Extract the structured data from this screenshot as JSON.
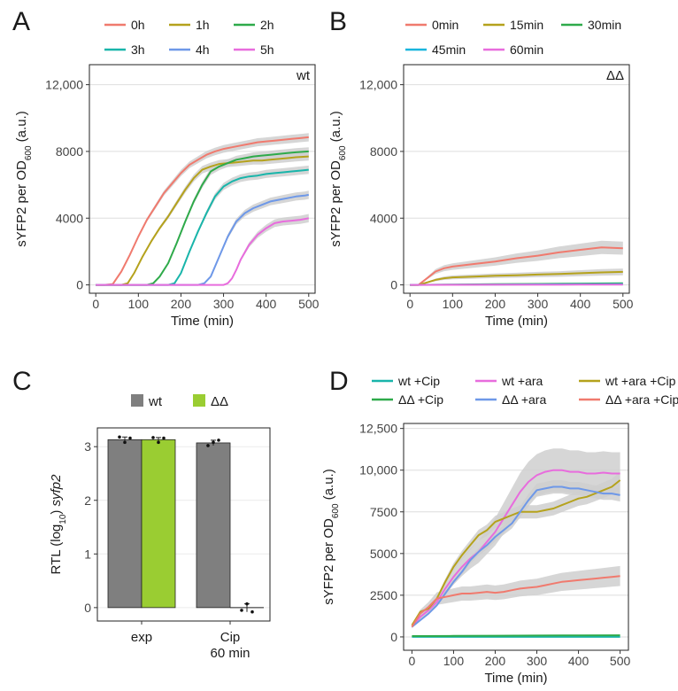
{
  "figure": {
    "panel_letters": [
      "A",
      "B",
      "C",
      "D"
    ]
  },
  "chart_data": [
    {
      "id": "A",
      "type": "line",
      "corner_label": "wt",
      "xlabel": "Time (min)",
      "ylabel_main": "sYFP2 per OD",
      "ylabel_sub": "600",
      "ylabel_suffix": " (a.u.)",
      "xlim": [
        -15,
        515
      ],
      "ylim": [
        -500,
        13200
      ],
      "xticks": [
        0,
        100,
        200,
        300,
        400,
        500
      ],
      "xtick_labels": [
        "0",
        "100",
        "200",
        "300",
        "400",
        "500"
      ],
      "yticks": [
        0,
        4000,
        8000,
        12000
      ],
      "ytick_labels": [
        "0",
        "4000",
        "8000",
        "12,000"
      ],
      "legend_cols": 3,
      "series": [
        {
          "name": "0h",
          "color": "#F07A6E",
          "x": [
            0,
            20,
            40,
            60,
            80,
            100,
            120,
            140,
            160,
            180,
            200,
            220,
            240,
            260,
            280,
            300,
            320,
            340,
            360,
            380,
            400,
            420,
            440,
            460,
            480,
            500
          ],
          "y": [
            0,
            0,
            50,
            800,
            1800,
            2900,
            3900,
            4700,
            5500,
            6100,
            6700,
            7200,
            7500,
            7800,
            8000,
            8150,
            8250,
            8350,
            8450,
            8550,
            8600,
            8650,
            8700,
            8750,
            8800,
            8850
          ]
        },
        {
          "name": "1h",
          "color": "#B5A21C",
          "x": [
            0,
            60,
            75,
            90,
            110,
            130,
            150,
            170,
            190,
            210,
            230,
            250,
            270,
            290,
            310,
            330,
            350,
            370,
            390,
            410,
            430,
            450,
            470,
            500
          ],
          "y": [
            0,
            0,
            100,
            700,
            1700,
            2600,
            3400,
            4100,
            4900,
            5700,
            6400,
            6900,
            7100,
            7250,
            7300,
            7350,
            7400,
            7450,
            7450,
            7500,
            7550,
            7600,
            7650,
            7700
          ]
        },
        {
          "name": "2h",
          "color": "#2EAA4A",
          "x": [
            0,
            120,
            135,
            150,
            170,
            190,
            210,
            230,
            250,
            270,
            290,
            310,
            330,
            350,
            370,
            390,
            410,
            430,
            450,
            470,
            500
          ],
          "y": [
            0,
            0,
            100,
            500,
            1300,
            2500,
            3800,
            5000,
            6000,
            6800,
            7100,
            7300,
            7500,
            7600,
            7700,
            7750,
            7800,
            7850,
            7900,
            7950,
            8000
          ]
        },
        {
          "name": "3h",
          "color": "#19B5AA",
          "x": [
            0,
            170,
            185,
            200,
            220,
            240,
            260,
            280,
            300,
            320,
            340,
            360,
            380,
            400,
            420,
            440,
            460,
            480,
            500
          ],
          "y": [
            0,
            0,
            100,
            700,
            2000,
            3200,
            4300,
            5300,
            5900,
            6200,
            6400,
            6500,
            6550,
            6650,
            6700,
            6750,
            6800,
            6850,
            6900
          ]
        },
        {
          "name": "4h",
          "color": "#6E98E8",
          "x": [
            0,
            240,
            255,
            270,
            290,
            310,
            330,
            350,
            370,
            390,
            410,
            430,
            450,
            470,
            490,
            500
          ],
          "y": [
            0,
            0,
            100,
            500,
            1700,
            2900,
            3800,
            4300,
            4600,
            4800,
            5000,
            5100,
            5200,
            5300,
            5350,
            5400
          ]
        },
        {
          "name": "5h",
          "color": "#E86CDD",
          "x": [
            0,
            300,
            310,
            320,
            330,
            340,
            360,
            380,
            400,
            420,
            440,
            460,
            480,
            500
          ],
          "y": [
            0,
            0,
            100,
            400,
            900,
            1500,
            2400,
            3000,
            3400,
            3700,
            3800,
            3850,
            3900,
            4000
          ]
        }
      ]
    },
    {
      "id": "B",
      "type": "line",
      "corner_label": "ΔΔ",
      "xlabel": "Time (min)",
      "ylabel_main": "sYFP2 per OD",
      "ylabel_sub": "600",
      "ylabel_suffix": " (a.u.)",
      "xlim": [
        -15,
        515
      ],
      "ylim": [
        -500,
        13200
      ],
      "xticks": [
        0,
        100,
        200,
        300,
        400,
        500
      ],
      "xtick_labels": [
        "0",
        "100",
        "200",
        "300",
        "400",
        "500"
      ],
      "yticks": [
        0,
        4000,
        8000,
        12000
      ],
      "ytick_labels": [
        "0",
        "4000",
        "8000",
        "12,000"
      ],
      "legend_cols": 3,
      "series": [
        {
          "name": "0min",
          "color": "#F07A6E",
          "x": [
            0,
            20,
            40,
            60,
            80,
            100,
            150,
            200,
            250,
            300,
            350,
            400,
            450,
            500
          ],
          "y": [
            0,
            0,
            400,
            800,
            1000,
            1100,
            1250,
            1400,
            1600,
            1750,
            1950,
            2100,
            2250,
            2200
          ]
        },
        {
          "name": "15min",
          "color": "#B5A21C",
          "x": [
            0,
            20,
            40,
            60,
            80,
            100,
            150,
            200,
            250,
            300,
            350,
            400,
            450,
            500
          ],
          "y": [
            0,
            0,
            150,
            300,
            400,
            450,
            500,
            550,
            580,
            620,
            650,
            700,
            750,
            780
          ]
        },
        {
          "name": "30min",
          "color": "#2EAA4A",
          "x": [
            0,
            100,
            200,
            300,
            400,
            500
          ],
          "y": [
            0,
            20,
            40,
            60,
            80,
            100
          ]
        },
        {
          "name": "45min",
          "color": "#19B5DD",
          "x": [
            0,
            100,
            200,
            300,
            400,
            500
          ],
          "y": [
            0,
            10,
            20,
            30,
            40,
            50
          ]
        },
        {
          "name": "60min",
          "color": "#E86CDD",
          "x": [
            0,
            100,
            200,
            300,
            400,
            500
          ],
          "y": [
            0,
            5,
            10,
            10,
            15,
            20
          ]
        }
      ]
    },
    {
      "id": "C",
      "type": "bar",
      "ylabel": "RTL (log",
      "ylabel_sub": "10",
      "ylabel_suffix": ") ",
      "ylabel_gene": "syfp2",
      "categories": [
        "exp",
        "Cip\n60 min"
      ],
      "category_line1": [
        "exp",
        "Cip"
      ],
      "category_line2": [
        "",
        "60 min"
      ],
      "ylim": [
        -0.25,
        3.35
      ],
      "yticks": [
        0,
        1,
        2,
        3
      ],
      "ytick_labels": [
        "0",
        "1",
        "2",
        "3"
      ],
      "series": [
        {
          "name": "wt",
          "color": "#7F7F7F",
          "values": [
            3.13,
            3.07
          ],
          "points": [
            [
              3.18,
              3.08,
              3.16
            ],
            [
              3.02,
              3.08,
              3.12
            ]
          ]
        },
        {
          "name": "ΔΔ",
          "color": "#9ACD32",
          "values": [
            3.13,
            0.0
          ],
          "points": [
            [
              3.17,
              3.08,
              3.16
            ],
            [
              -0.05,
              0.07,
              -0.08
            ]
          ]
        }
      ]
    },
    {
      "id": "D",
      "type": "line",
      "xlabel": "Time (min)",
      "ylabel_main": "sYFP2 per OD",
      "ylabel_sub": "600",
      "ylabel_suffix": " (a.u.)",
      "xlim": [
        -20,
        520
      ],
      "ylim": [
        -800,
        12800
      ],
      "xticks": [
        0,
        100,
        200,
        300,
        400,
        500
      ],
      "xtick_labels": [
        "0",
        "100",
        "200",
        "300",
        "400",
        "500"
      ],
      "yticks": [
        0,
        2500,
        5000,
        7500,
        10000,
        12500
      ],
      "ytick_labels": [
        "0",
        "2500",
        "5000",
        "7500",
        "10,000",
        "12,500"
      ],
      "legend_cols": 3,
      "legend_order": [
        "wt +Cip",
        "wt +ara",
        "wt +ara +Cip",
        "ΔΔ +Cip",
        "ΔΔ +ara",
        "ΔΔ +ara +Cip"
      ],
      "series": [
        {
          "name": "wt +Cip",
          "color": "#19B5AA",
          "x": [
            0,
            100,
            200,
            300,
            400,
            500
          ],
          "y": [
            0,
            0,
            0,
            0,
            0,
            0
          ]
        },
        {
          "name": "wt +ara",
          "color": "#E86CDD",
          "x": [
            0,
            20,
            40,
            60,
            80,
            100,
            120,
            140,
            160,
            180,
            200,
            220,
            240,
            260,
            280,
            300,
            320,
            340,
            360,
            380,
            400,
            420,
            440,
            460,
            480,
            500
          ],
          "y": [
            600,
            1200,
            1600,
            2100,
            2900,
            3600,
            4200,
            4700,
            5100,
            5700,
            6300,
            7100,
            7900,
            8700,
            9300,
            9700,
            9900,
            10000,
            10000,
            9900,
            9900,
            9800,
            9800,
            9850,
            9800,
            9800
          ]
        },
        {
          "name": "wt +ara +Cip",
          "color": "#B5A21C",
          "x": [
            0,
            20,
            40,
            60,
            80,
            100,
            120,
            140,
            160,
            180,
            200,
            220,
            240,
            260,
            280,
            300,
            320,
            340,
            360,
            380,
            400,
            420,
            440,
            460,
            480,
            500
          ],
          "y": [
            700,
            1500,
            1700,
            2300,
            3300,
            4200,
            4900,
            5500,
            6100,
            6400,
            6900,
            7100,
            7300,
            7500,
            7500,
            7500,
            7600,
            7700,
            7900,
            8100,
            8300,
            8400,
            8600,
            8800,
            9000,
            9400
          ]
        },
        {
          "name": "ΔΔ +Cip",
          "color": "#2EAA4A",
          "x": [
            0,
            100,
            200,
            300,
            400,
            500
          ],
          "y": [
            50,
            60,
            70,
            80,
            90,
            100
          ]
        },
        {
          "name": "ΔΔ +ara",
          "color": "#6E98E8",
          "x": [
            0,
            20,
            40,
            60,
            80,
            100,
            120,
            140,
            160,
            180,
            200,
            220,
            240,
            260,
            280,
            300,
            320,
            340,
            360,
            380,
            400,
            420,
            440,
            460,
            480,
            500
          ],
          "y": [
            600,
            1000,
            1400,
            1900,
            2600,
            3300,
            3900,
            4600,
            5100,
            5500,
            6000,
            6400,
            6800,
            7500,
            8200,
            8800,
            8900,
            9000,
            9000,
            8900,
            8900,
            8800,
            8700,
            8600,
            8600,
            8500
          ]
        },
        {
          "name": "ΔΔ +ara +Cip",
          "color": "#F07A6E",
          "x": [
            0,
            20,
            40,
            60,
            80,
            100,
            120,
            140,
            160,
            180,
            200,
            220,
            240,
            260,
            280,
            300,
            320,
            340,
            360,
            380,
            400,
            420,
            440,
            460,
            480,
            500
          ],
          "y": [
            600,
            1400,
            1800,
            2300,
            2400,
            2500,
            2600,
            2600,
            2650,
            2700,
            2650,
            2700,
            2800,
            2900,
            2950,
            3000,
            3100,
            3200,
            3300,
            3350,
            3400,
            3450,
            3500,
            3550,
            3600,
            3650
          ]
        }
      ]
    }
  ]
}
